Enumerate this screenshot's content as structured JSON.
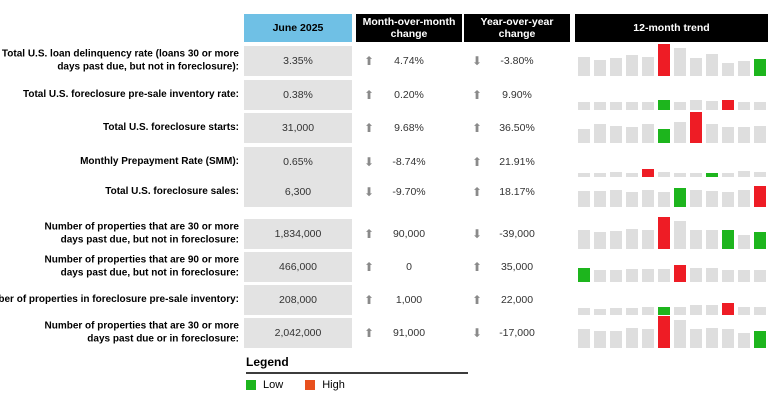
{
  "header": {
    "period": "June 2025",
    "mom": "Month-over-month\nchange",
    "yoy": "Year-over-year\nchange",
    "trend": "12-month trend"
  },
  "chart_data": {
    "type": "table",
    "columns": [
      "",
      "June 2025",
      "Month-over-month change",
      "Year-over-year change",
      "12-month trend"
    ],
    "trend_colors": {
      "gray": "#dedede",
      "red": "#ee1c25",
      "green": "#1db51d"
    },
    "rows": [
      {
        "label": "Total U.S. loan delinquency rate (loans 30 or more\ndays past due, but not in foreclosure):",
        "value": "3.35%",
        "mom_dir": "up",
        "mom": "4.74%",
        "yoy_dir": "down",
        "yoy": "-3.80%",
        "trend": {
          "heights": [
            0.6,
            0.5,
            0.56,
            0.66,
            0.6,
            1.0,
            0.88,
            0.56,
            0.7,
            0.42,
            0.46,
            0.52
          ],
          "colors": [
            "-",
            "-",
            "-",
            "-",
            "-",
            "r",
            "-",
            "-",
            "-",
            "-",
            "-",
            "g"
          ]
        }
      },
      {
        "label": "Total U.S. foreclosure pre-sale inventory rate:",
        "value": "0.38%",
        "mom_dir": "up",
        "mom": "0.20%",
        "yoy_dir": "up",
        "yoy": "9.90%",
        "trend": {
          "heights": [
            0.26,
            0.26,
            0.24,
            0.26,
            0.26,
            0.3,
            0.26,
            0.3,
            0.28,
            0.32,
            0.24,
            0.24
          ],
          "colors": [
            "-",
            "-",
            "-",
            "-",
            "-",
            "g",
            "-",
            "-",
            "-",
            "r",
            "-",
            "-"
          ]
        }
      },
      {
        "label": "Total U.S. foreclosure starts:",
        "value": "31,000",
        "mom_dir": "up",
        "mom": "9.68%",
        "yoy_dir": "up",
        "yoy": "36.50%",
        "trend": {
          "heights": [
            0.44,
            0.6,
            0.54,
            0.5,
            0.58,
            0.44,
            0.66,
            0.96,
            0.58,
            0.5,
            0.5,
            0.54
          ],
          "colors": [
            "-",
            "-",
            "-",
            "-",
            "-",
            "g",
            "-",
            "r",
            "-",
            "-",
            "-",
            "-"
          ]
        }
      },
      {
        "label": "Monthly Prepayment Rate (SMM):",
        "value": "0.65%",
        "mom_dir": "down",
        "mom": "-8.74%",
        "yoy_dir": "up",
        "yoy": "21.91%",
        "trend": {
          "heights": [
            0.13,
            0.14,
            0.16,
            0.14,
            0.26,
            0.16,
            0.14,
            0.12,
            0.09,
            0.14,
            0.18,
            0.16
          ],
          "colors": [
            "-",
            "-",
            "-",
            "-",
            "r",
            "-",
            "-",
            "-",
            "g",
            "-",
            "-",
            "-"
          ]
        }
      },
      {
        "label": "Total U.S. foreclosure sales:",
        "value": "6,300",
        "mom_dir": "down",
        "mom": "-9.70%",
        "yoy_dir": "up",
        "yoy": "18.17%",
        "trend": {
          "heights": [
            0.5,
            0.5,
            0.52,
            0.48,
            0.52,
            0.48,
            0.58,
            0.54,
            0.5,
            0.48,
            0.52,
            0.66
          ],
          "colors": [
            "-",
            "-",
            "-",
            "-",
            "-",
            "-",
            "g",
            "-",
            "-",
            "-",
            "-",
            "r"
          ]
        }
      },
      {
        "label": "Number of properties that are 30 or more\ndays past due, but not in foreclosure:",
        "value": "1,834,000",
        "mom_dir": "up",
        "mom": "90,000",
        "yoy_dir": "down",
        "yoy": "-39,000",
        "trend": {
          "heights": [
            0.58,
            0.54,
            0.56,
            0.64,
            0.58,
            1.0,
            0.86,
            0.58,
            0.58,
            0.58,
            0.44,
            0.54
          ],
          "colors": [
            "-",
            "-",
            "-",
            "-",
            "-",
            "r",
            "-",
            "-",
            "-",
            "g",
            "-",
            "g"
          ]
        }
      },
      {
        "label": "Number of properties that are 90 or more\ndays past due, but not in foreclosure:",
        "value": "466,000",
        "mom_dir": "up",
        "mom": "0",
        "yoy_dir": "up",
        "yoy": "35,000",
        "trend": {
          "heights": [
            0.44,
            0.36,
            0.36,
            0.4,
            0.4,
            0.4,
            0.52,
            0.44,
            0.44,
            0.38,
            0.38,
            0.38
          ],
          "colors": [
            "g",
            "-",
            "-",
            "-",
            "-",
            "-",
            "r",
            "-",
            "-",
            "-",
            "-",
            "-"
          ]
        }
      },
      {
        "label": "Number of properties in foreclosure pre-sale inventory:",
        "value": "208,000",
        "mom_dir": "up",
        "mom": "1,000",
        "yoy_dir": "up",
        "yoy": "22,000",
        "trend": {
          "heights": [
            0.22,
            0.2,
            0.22,
            0.22,
            0.24,
            0.26,
            0.26,
            0.32,
            0.3,
            0.36,
            0.24,
            0.24
          ],
          "colors": [
            "-",
            "-",
            "-",
            "-",
            "-",
            "g",
            "-",
            "-",
            "-",
            "r",
            "-",
            "-"
          ]
        }
      },
      {
        "label": "Number of properties that are 30 or more\ndays past due or in foreclosure:",
        "value": "2,042,000",
        "mom_dir": "up",
        "mom": "91,000",
        "yoy_dir": "down",
        "yoy": "-17,000",
        "trend": {
          "heights": [
            0.58,
            0.52,
            0.54,
            0.62,
            0.58,
            1.0,
            0.86,
            0.58,
            0.64,
            0.58,
            0.48,
            0.54
          ],
          "colors": [
            "-",
            "-",
            "-",
            "-",
            "-",
            "r",
            "-",
            "-",
            "-",
            "-",
            "-",
            "g"
          ]
        }
      }
    ],
    "legend": {
      "title": "Legend",
      "items": [
        {
          "label": "Low",
          "color": "#1db51d"
        },
        {
          "label": "High",
          "color": "#e8501e"
        }
      ]
    }
  }
}
